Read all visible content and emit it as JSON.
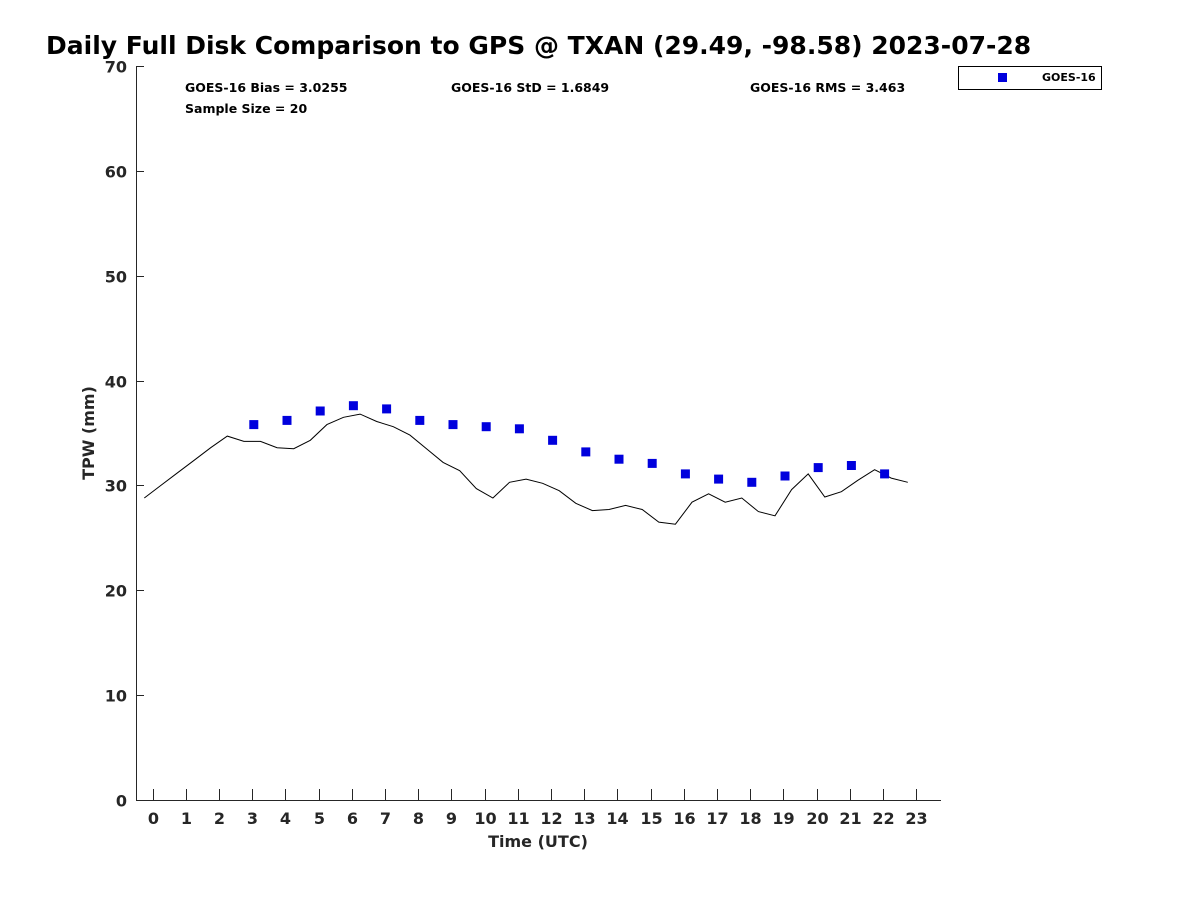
{
  "chart_data": {
    "type": "scatter",
    "title": "Daily Full Disk Comparison to GPS @ TXAN (29.49, -98.58) 2023-07-28",
    "xlabel": "Time (UTC)",
    "ylabel": "TPW (mm)",
    "xlim": [
      -0.5,
      23.75
    ],
    "ylim": [
      0,
      70
    ],
    "x_ticks": [
      0,
      1,
      2,
      3,
      4,
      5,
      6,
      7,
      8,
      9,
      10,
      11,
      12,
      13,
      14,
      15,
      16,
      17,
      18,
      19,
      20,
      21,
      22,
      23
    ],
    "y_ticks": [
      0,
      10,
      20,
      30,
      40,
      50,
      60,
      70
    ],
    "grid": false,
    "legend_position": "top-right",
    "stats": {
      "bias": "GOES-16 Bias = 3.0255",
      "std": "GOES-16 StD = 1.6849",
      "rms": "GOES-16 RMS = 3.463",
      "sample": "Sample Size = 20"
    },
    "series": [
      {
        "name": "GOES-16",
        "kind": "scatter",
        "marker": "square",
        "color": "#0000dd",
        "x": [
          3.05,
          4.05,
          5.05,
          6.05,
          7.05,
          8.05,
          9.05,
          10.05,
          11.05,
          12.05,
          13.05,
          14.05,
          15.05,
          16.05,
          17.05,
          18.05,
          19.05,
          20.05,
          21.05,
          22.05
        ],
        "y": [
          35.8,
          36.2,
          37.1,
          37.6,
          37.3,
          36.2,
          35.8,
          35.6,
          35.4,
          34.3,
          33.2,
          32.5,
          32.1,
          31.1,
          30.6,
          30.3,
          30.9,
          31.7,
          31.9,
          31.1
        ]
      },
      {
        "kind": "line",
        "color": "#000000",
        "x": [
          -0.25,
          0.25,
          0.75,
          1.25,
          1.75,
          2.25,
          2.75,
          3.25,
          3.75,
          4.25,
          4.75,
          5.25,
          5.75,
          6.25,
          6.75,
          7.25,
          7.75,
          8.25,
          8.75,
          9.25,
          9.75,
          10.25,
          10.75,
          11.25,
          11.75,
          12.25,
          12.75,
          13.25,
          13.75,
          14.25,
          14.75,
          15.25,
          15.75,
          16.25,
          16.75,
          17.25,
          17.75,
          18.25,
          18.75,
          19.25,
          19.75,
          20.25,
          20.75,
          21.25,
          21.75,
          22.25,
          22.75
        ],
        "y": [
          28.8,
          30.0,
          31.2,
          32.4,
          33.6,
          34.7,
          34.2,
          34.2,
          33.6,
          33.5,
          34.3,
          35.8,
          36.5,
          36.8,
          36.1,
          35.6,
          34.8,
          33.5,
          32.2,
          31.4,
          29.7,
          28.8,
          30.3,
          30.6,
          30.2,
          29.5,
          28.3,
          27.6,
          27.7,
          28.1,
          27.7,
          26.5,
          26.3,
          28.4,
          29.2,
          28.4,
          28.8,
          27.5,
          27.1,
          29.6,
          31.1,
          28.9,
          29.4,
          30.5,
          31.5,
          30.7,
          30.3
        ]
      }
    ]
  }
}
